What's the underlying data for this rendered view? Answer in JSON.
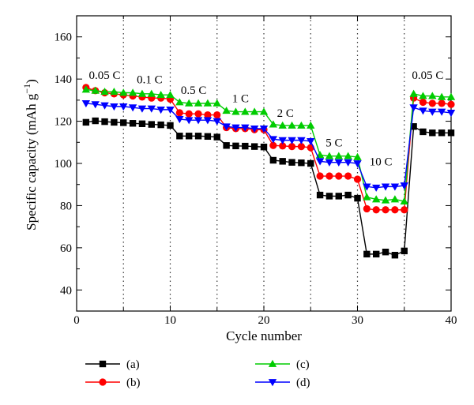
{
  "chart_data": {
    "type": "line",
    "xlabel": "Cycle number",
    "ylabel_parts": [
      "Specific capacity (mAh g",
      "−1",
      ")"
    ],
    "xlim": [
      0,
      40
    ],
    "ylim": [
      30,
      170
    ],
    "xticks": [
      0,
      10,
      20,
      30,
      40
    ],
    "yticks": [
      40,
      60,
      80,
      100,
      120,
      140,
      160
    ],
    "x_minor_step": 5,
    "y_minor_step": 10,
    "rate_boundaries": [
      5,
      10,
      15,
      20,
      25,
      30,
      35
    ],
    "grid": false,
    "rate_labels": [
      {
        "text": "0.05 C",
        "x": 3,
        "y": 140
      },
      {
        "text": "0.1 C",
        "x": 7.8,
        "y": 138
      },
      {
        "text": "0.5 C",
        "x": 12.5,
        "y": 133
      },
      {
        "text": "1 C",
        "x": 17.5,
        "y": 129
      },
      {
        "text": "2 C",
        "x": 22.3,
        "y": 122
      },
      {
        "text": "5 C",
        "x": 27.5,
        "y": 108
      },
      {
        "text": "10 C",
        "x": 32.5,
        "y": 99
      },
      {
        "text": "0.05 C",
        "x": 37.5,
        "y": 140
      }
    ],
    "legend_placement": "bottom",
    "series": [
      {
        "name": "(a)",
        "color": "#000000",
        "marker": "square",
        "x": [
          1,
          2,
          3,
          4,
          5,
          6,
          7,
          8,
          9,
          10,
          11,
          12,
          13,
          14,
          15,
          16,
          17,
          18,
          19,
          20,
          21,
          22,
          23,
          24,
          25,
          26,
          27,
          28,
          29,
          30,
          31,
          32,
          33,
          34,
          35,
          36,
          37,
          38,
          39,
          40
        ],
        "values": [
          119.5,
          120.2,
          119.8,
          119.5,
          119.3,
          119,
          118.8,
          118.5,
          118.3,
          118,
          113,
          113,
          113,
          112.8,
          112.5,
          108.5,
          108.3,
          108.2,
          108,
          107.8,
          101.5,
          101,
          100.5,
          100.3,
          100,
          85,
          84.5,
          84.5,
          85,
          83.5,
          57,
          57,
          58,
          56.5,
          58.5,
          117.5,
          115,
          114.5,
          114.5,
          114.5
        ]
      },
      {
        "name": "(b)",
        "color": "#ff0000",
        "marker": "circle",
        "x": [
          1,
          2,
          3,
          4,
          5,
          6,
          7,
          8,
          9,
          10,
          11,
          12,
          13,
          14,
          15,
          16,
          17,
          18,
          19,
          20,
          21,
          22,
          23,
          24,
          25,
          26,
          27,
          28,
          29,
          30,
          31,
          32,
          33,
          34,
          35,
          36,
          37,
          38,
          39,
          40
        ],
        "values": [
          136,
          134.5,
          133.5,
          133,
          132.5,
          132,
          131.5,
          131,
          131,
          130.5,
          124,
          123.5,
          123.5,
          123,
          123,
          117,
          116.5,
          116.5,
          116,
          116,
          108.5,
          108.3,
          108,
          108,
          107.5,
          94,
          94,
          94,
          94,
          92.5,
          78.5,
          78,
          78,
          78,
          78,
          131,
          129,
          128.5,
          128.5,
          128
        ]
      },
      {
        "name": "(c)",
        "color": "#00cc00",
        "marker": "triangle-up",
        "x": [
          1,
          2,
          3,
          4,
          5,
          6,
          7,
          8,
          9,
          10,
          11,
          12,
          13,
          14,
          15,
          16,
          17,
          18,
          19,
          20,
          21,
          22,
          23,
          24,
          25,
          26,
          27,
          28,
          29,
          30,
          31,
          32,
          33,
          34,
          35,
          36,
          37,
          38,
          39,
          40
        ],
        "values": [
          135,
          134.5,
          134,
          134,
          133.5,
          133.5,
          133,
          133,
          132.5,
          132.5,
          129,
          128.5,
          128.5,
          128.5,
          128.5,
          125,
          124.5,
          124.5,
          124.5,
          124.5,
          118.5,
          118,
          118,
          118,
          118,
          104,
          103.5,
          103.5,
          103.5,
          103,
          84,
          83,
          82.5,
          83,
          82,
          133,
          132,
          132,
          131.5,
          131.5
        ]
      },
      {
        "name": "(d)",
        "color": "#0000ff",
        "marker": "triangle-down",
        "x": [
          1,
          2,
          3,
          4,
          5,
          6,
          7,
          8,
          9,
          10,
          11,
          12,
          13,
          14,
          15,
          16,
          17,
          18,
          19,
          20,
          21,
          22,
          23,
          24,
          25,
          26,
          27,
          28,
          29,
          30,
          31,
          32,
          33,
          34,
          35,
          36,
          37,
          38,
          39,
          40
        ],
        "values": [
          128.5,
          128,
          127.5,
          127,
          127,
          126.5,
          126,
          126,
          125.5,
          125.5,
          121,
          120.5,
          120.5,
          120.5,
          120,
          117.5,
          117,
          117,
          116.5,
          116.5,
          111.5,
          111,
          111,
          111,
          110.5,
          101,
          100.5,
          100.5,
          100.5,
          100,
          89,
          88.5,
          89,
          89,
          89.5,
          126.5,
          125,
          124.5,
          124.5,
          124
        ]
      }
    ]
  }
}
